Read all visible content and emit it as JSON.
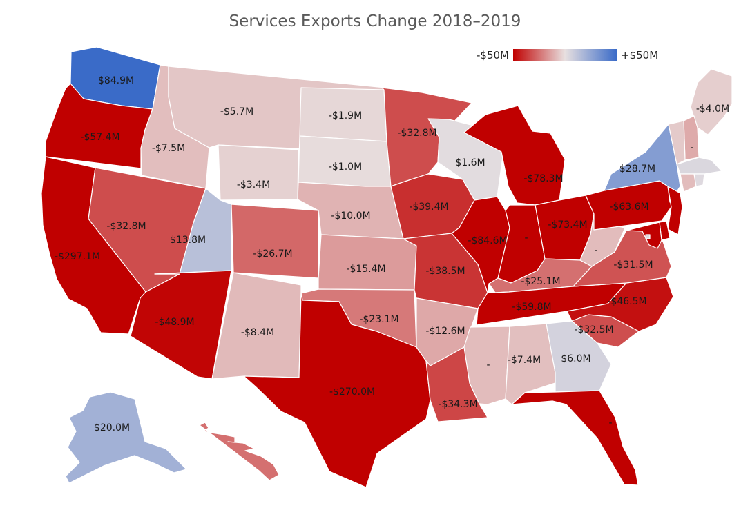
{
  "title": "Services Exports Change 2018–2019",
  "legend": {
    "min_label": "-$50M",
    "max_label": "+$50M",
    "colors": [
      "#c00000",
      "#e8e0e0",
      "#3a6bc8"
    ]
  },
  "chart_data": {
    "type": "choropleth",
    "title": "Services Exports Change 2018–2019",
    "unit": "$M",
    "scale": {
      "min": -50,
      "max": 50
    },
    "states": [
      {
        "state": "WA",
        "value": 84.9,
        "label": "$84.9M"
      },
      {
        "state": "OR",
        "value": -57.4,
        "label": "-$57.4M"
      },
      {
        "state": "CA",
        "value": -297.1,
        "label": "-$297.1M"
      },
      {
        "state": "ID",
        "value": -7.5,
        "label": "-$7.5M"
      },
      {
        "state": "NV",
        "value": -32.8,
        "label": "-$32.8M"
      },
      {
        "state": "MT",
        "value": -5.7,
        "label": "-$5.7M"
      },
      {
        "state": "WY",
        "value": -3.4,
        "label": "-$3.4M"
      },
      {
        "state": "UT",
        "value": 13.8,
        "label": "$13.8M"
      },
      {
        "state": "AZ",
        "value": -48.9,
        "label": "-$48.9M"
      },
      {
        "state": "CO",
        "value": -26.7,
        "label": "-$26.7M"
      },
      {
        "state": "NM",
        "value": -8.4,
        "label": "-$8.4M"
      },
      {
        "state": "ND",
        "value": -1.9,
        "label": "-$1.9M"
      },
      {
        "state": "SD",
        "value": -1.0,
        "label": "-$1.0M"
      },
      {
        "state": "NE",
        "value": -10.0,
        "label": "-$10.0M"
      },
      {
        "state": "KS",
        "value": -15.4,
        "label": "-$15.4M"
      },
      {
        "state": "OK",
        "value": -23.1,
        "label": "-$23.1M"
      },
      {
        "state": "TX",
        "value": -270.0,
        "label": "-$270.0M"
      },
      {
        "state": "MN",
        "value": -32.8,
        "label": "-$32.8M"
      },
      {
        "state": "IA",
        "value": -39.4,
        "label": "-$39.4M"
      },
      {
        "state": "MO",
        "value": -38.5,
        "label": "-$38.5M"
      },
      {
        "state": "AR",
        "value": -12.6,
        "label": "-$12.6M"
      },
      {
        "state": "LA",
        "value": -34.3,
        "label": "-$34.3M"
      },
      {
        "state": "WI",
        "value": 1.6,
        "label": "$1.6M"
      },
      {
        "state": "IL",
        "value": -84.6,
        "label": "-$84.6M"
      },
      {
        "state": "MI",
        "value": -78.3,
        "label": "-$78.3M"
      },
      {
        "state": "IN",
        "value": -55,
        "label": "-"
      },
      {
        "state": "OH",
        "value": -73.4,
        "label": "-$73.4M"
      },
      {
        "state": "KY",
        "value": -25.1,
        "label": "-$25.1M"
      },
      {
        "state": "TN",
        "value": -59.8,
        "label": "-$59.8M"
      },
      {
        "state": "MS",
        "value": -8,
        "label": "-"
      },
      {
        "state": "AL",
        "value": -7.4,
        "label": "-$7.4M"
      },
      {
        "state": "GA",
        "value": 6.0,
        "label": "$6.0M"
      },
      {
        "state": "FL",
        "value": -60,
        "label": "-"
      },
      {
        "state": "SC",
        "value": -32.5,
        "label": "-$32.5M"
      },
      {
        "state": "NC",
        "value": -46.5,
        "label": "-$46.5M"
      },
      {
        "state": "VA",
        "value": -31.5,
        "label": "-$31.5M"
      },
      {
        "state": "WV",
        "value": -8,
        "label": "-"
      },
      {
        "state": "PA",
        "value": -63.6,
        "label": "-$63.6M"
      },
      {
        "state": "NY",
        "value": 28.7,
        "label": "$28.7M"
      },
      {
        "state": "ME",
        "value": -4.0,
        "label": "-$4.0M"
      },
      {
        "state": "NH",
        "value": -12,
        "label": "-"
      },
      {
        "state": "VT",
        "value": -5,
        "label": ""
      },
      {
        "state": "MA",
        "value": 4,
        "label": ""
      },
      {
        "state": "CT",
        "value": -8,
        "label": ""
      },
      {
        "state": "RI",
        "value": 3,
        "label": ""
      },
      {
        "state": "NJ",
        "value": -60,
        "label": ""
      },
      {
        "state": "DE",
        "value": -60,
        "label": ""
      },
      {
        "state": "MD",
        "value": -50,
        "label": ""
      },
      {
        "state": "DC",
        "value": 3,
        "label": ""
      },
      {
        "state": "AK",
        "value": 20.0,
        "label": "$20.0M"
      },
      {
        "state": "HI",
        "value": -25,
        "label": ""
      }
    ]
  }
}
